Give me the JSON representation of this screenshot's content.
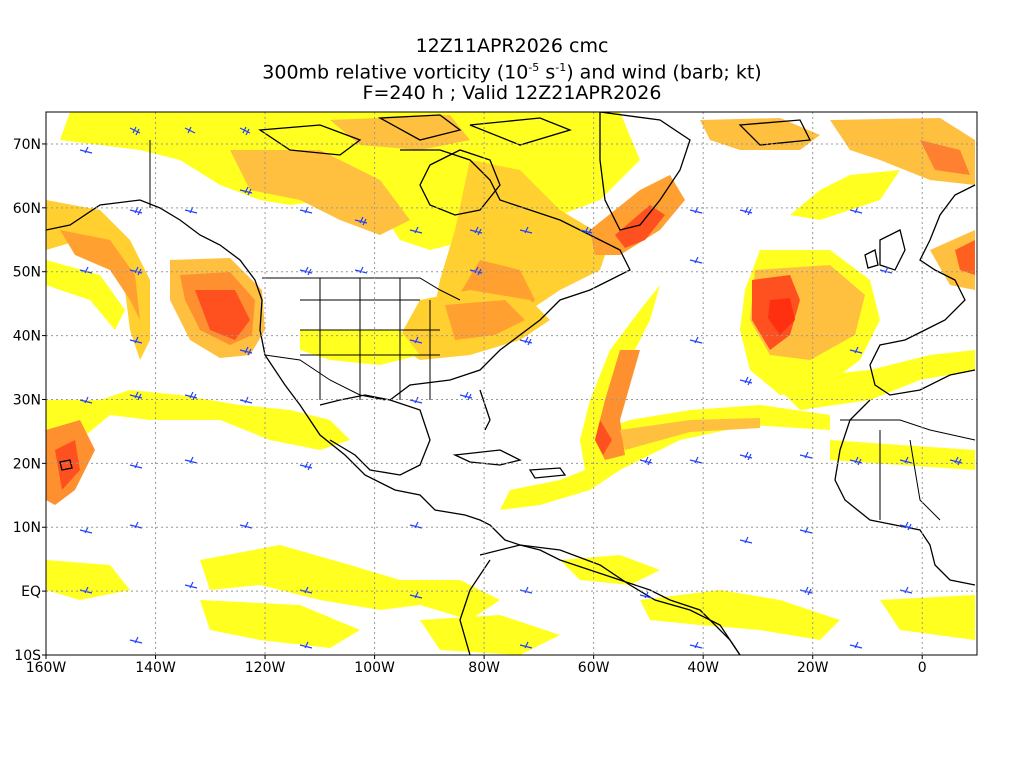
{
  "title": {
    "line1": "12Z11APR2026 cmc",
    "line2_pre": "300mb relative vorticity (10",
    "line2_exp1": "-5",
    "line2_mid": " s",
    "line2_exp2": "-1",
    "line2_post": ") and wind (barb; kt)",
    "line3": "F=240 h ; Valid 12Z21APR2026"
  },
  "axes": {
    "lon_labels": [
      "160W",
      "140W",
      "120W",
      "100W",
      "80W",
      "60W",
      "40W",
      "20W",
      "0"
    ],
    "lat_labels": [
      "70N",
      "60N",
      "50N",
      "40N",
      "30N",
      "20N",
      "10N",
      "EQ",
      "10S"
    ],
    "lon_range": [
      -160,
      10
    ],
    "lat_range": [
      -10,
      75
    ],
    "grid": true
  },
  "colors": {
    "shade_light": "#ffff00",
    "shade_yellow2": "#f0f040",
    "shade_orange_light": "#ffc040",
    "shade_orange": "#ff9030",
    "shade_red": "#ff5020",
    "barb": "#2040ff",
    "coast": "#000000",
    "grid": "#999999"
  }
}
